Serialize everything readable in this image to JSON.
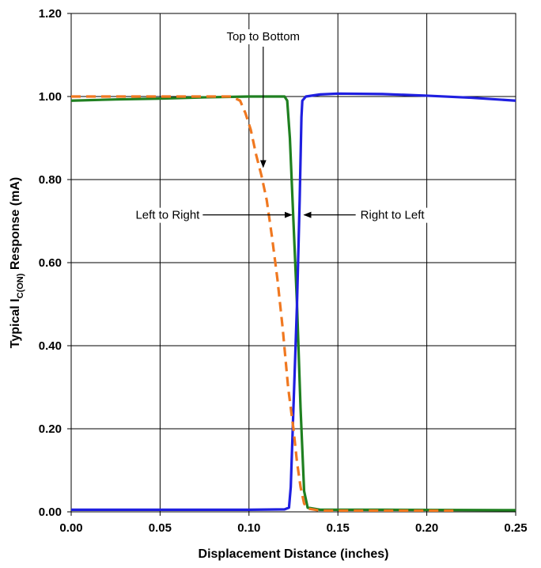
{
  "chart_data": {
    "type": "line",
    "title": "",
    "xlabel": "Displacement Distance (inches)",
    "ylabel": {
      "prefix": "Typical I",
      "subscript": "C(ON)",
      "suffix": " Response (mA)"
    },
    "xlim": [
      0,
      0.25
    ],
    "ylim": [
      0,
      1.2
    ],
    "x_ticks": [
      "0.00",
      "0.05",
      "0.10",
      "0.15",
      "0.20",
      "0.25"
    ],
    "y_ticks": [
      "0.00",
      "0.20",
      "0.40",
      "0.60",
      "0.80",
      "1.00",
      "1.20"
    ],
    "grid": true,
    "legend": "none",
    "series": [
      {
        "name": "Right to Left",
        "color": "#1f1fe0",
        "style": "solid",
        "points": [
          [
            0,
            0.005
          ],
          [
            0.05,
            0.005
          ],
          [
            0.1,
            0.005
          ],
          [
            0.12,
            0.006
          ],
          [
            0.1225,
            0.01
          ],
          [
            0.1235,
            0.06
          ],
          [
            0.125,
            0.25
          ],
          [
            0.127,
            0.5
          ],
          [
            0.1285,
            0.75
          ],
          [
            0.1295,
            0.95
          ],
          [
            0.13,
            0.99
          ],
          [
            0.132,
            1.0
          ],
          [
            0.14,
            1.005
          ],
          [
            0.15,
            1.007
          ],
          [
            0.175,
            1.006
          ],
          [
            0.2,
            1.002
          ],
          [
            0.225,
            0.997
          ],
          [
            0.25,
            0.99
          ]
        ]
      },
      {
        "name": "Left to Right",
        "color": "#1f8020",
        "style": "solid",
        "points": [
          [
            0,
            0.99
          ],
          [
            0.025,
            0.993
          ],
          [
            0.05,
            0.995
          ],
          [
            0.075,
            0.998
          ],
          [
            0.1,
            1.0
          ],
          [
            0.115,
            1.0
          ],
          [
            0.12,
            1.0
          ],
          [
            0.1215,
            0.99
          ],
          [
            0.123,
            0.9
          ],
          [
            0.125,
            0.7
          ],
          [
            0.127,
            0.5
          ],
          [
            0.129,
            0.25
          ],
          [
            0.131,
            0.05
          ],
          [
            0.133,
            0.01
          ],
          [
            0.14,
            0.005
          ],
          [
            0.175,
            0.005
          ],
          [
            0.25,
            0.004
          ]
        ]
      },
      {
        "name": "Top to Bottom",
        "color": "#f07820",
        "style": "dashed",
        "points": [
          [
            0,
            1.0
          ],
          [
            0.05,
            1.0
          ],
          [
            0.09,
            1.0
          ],
          [
            0.095,
            0.99
          ],
          [
            0.098,
            0.96
          ],
          [
            0.101,
            0.92
          ],
          [
            0.104,
            0.86
          ],
          [
            0.107,
            0.81
          ],
          [
            0.11,
            0.75
          ],
          [
            0.113,
            0.66
          ],
          [
            0.116,
            0.56
          ],
          [
            0.119,
            0.44
          ],
          [
            0.122,
            0.3
          ],
          [
            0.125,
            0.2
          ],
          [
            0.127,
            0.12
          ],
          [
            0.129,
            0.06
          ],
          [
            0.131,
            0.02
          ],
          [
            0.133,
            0.008
          ],
          [
            0.14,
            0.003
          ],
          [
            0.18,
            0.003
          ],
          [
            0.216,
            0.003
          ]
        ]
      }
    ],
    "annotations": [
      {
        "text": "Top to Bottom",
        "from": [
          0.108,
          1.12
        ],
        "to": [
          0.108,
          0.83
        ]
      },
      {
        "text": "Left to Right",
        "from": [
          0.074,
          0.715
        ],
        "to": [
          0.124,
          0.715
        ]
      },
      {
        "text": "Right to Left",
        "from": [
          0.16,
          0.715
        ],
        "to": [
          0.131,
          0.715
        ]
      }
    ]
  }
}
